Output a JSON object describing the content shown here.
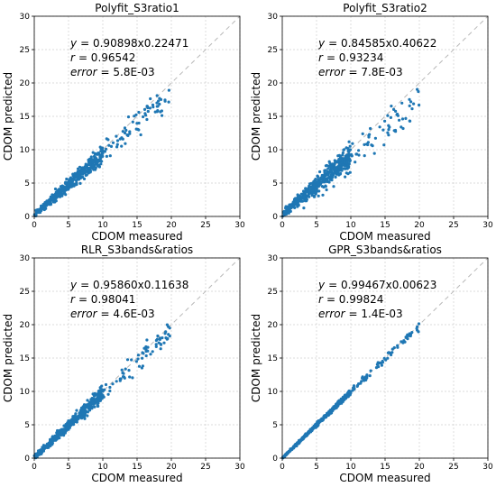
{
  "chart_data": [
    {
      "type": "scatter",
      "title": "Polyfit_S3ratio1",
      "xlabel": "CDOM measured",
      "ylabel": "CDOM predicted",
      "xlim": [
        0,
        30
      ],
      "ylim": [
        0,
        30
      ],
      "xticks": [
        "0",
        "5",
        "10",
        "15",
        "20",
        "25",
        "30"
      ],
      "yticks": [
        "0",
        "5",
        "10",
        "15",
        "20",
        "25",
        "30"
      ],
      "grid": true,
      "reference_line": "1:1 dashed",
      "annotations": {
        "equation_var": "y",
        "equation_eq": "= 0.90898x0.22471",
        "r_var": "r",
        "r_eq": "= 0.96542",
        "error_var": "error",
        "error_eq": "= 5.8E-03"
      },
      "fit": {
        "slope": 0.90898,
        "intercept": 0.22471,
        "spread": 0.9
      },
      "point_color": "#1f77b4"
    },
    {
      "type": "scatter",
      "title": "Polyfit_S3ratio2",
      "xlabel": "CDOM measured",
      "ylabel": "CDOM predicted",
      "xlim": [
        0,
        30
      ],
      "ylim": [
        0,
        30
      ],
      "xticks": [
        "0",
        "5",
        "10",
        "15",
        "20",
        "25",
        "30"
      ],
      "yticks": [
        "0",
        "5",
        "10",
        "15",
        "20",
        "25",
        "30"
      ],
      "grid": true,
      "reference_line": "1:1 dashed",
      "annotations": {
        "equation_var": "y",
        "equation_eq": "= 0.84585x0.40622",
        "r_var": "r",
        "r_eq": "= 0.93234",
        "error_var": "error",
        "error_eq": "= 7.8E-03"
      },
      "fit": {
        "slope": 0.84585,
        "intercept": 0.40622,
        "spread": 1.3
      },
      "point_color": "#1f77b4"
    },
    {
      "type": "scatter",
      "title": "RLR_S3bands&ratios",
      "xlabel": "CDOM measured",
      "ylabel": "CDOM predicted",
      "xlim": [
        0,
        30
      ],
      "ylim": [
        0,
        30
      ],
      "xticks": [
        "0",
        "5",
        "10",
        "15",
        "20",
        "25",
        "30"
      ],
      "yticks": [
        "0",
        "5",
        "10",
        "15",
        "20",
        "25",
        "30"
      ],
      "grid": true,
      "reference_line": "1:1 dashed",
      "annotations": {
        "equation_var": "y",
        "equation_eq": "= 0.95860x0.11638",
        "r_var": "r",
        "r_eq": "= 0.98041",
        "error_var": "error",
        "error_eq": "= 4.6E-03"
      },
      "fit": {
        "slope": 0.9586,
        "intercept": 0.11638,
        "spread": 0.7
      },
      "point_color": "#1f77b4"
    },
    {
      "type": "scatter",
      "title": "GPR_S3bands&ratios",
      "xlabel": "CDOM measured",
      "ylabel": "CDOM predicted",
      "xlim": [
        0,
        30
      ],
      "ylim": [
        0,
        30
      ],
      "xticks": [
        "0",
        "5",
        "10",
        "15",
        "20",
        "25",
        "30"
      ],
      "yticks": [
        "0",
        "5",
        "10",
        "15",
        "20",
        "25",
        "30"
      ],
      "grid": true,
      "reference_line": "1:1 dashed",
      "annotations": {
        "equation_var": "y",
        "equation_eq": "= 0.99467x0.00623",
        "r_var": "r",
        "r_eq": "= 0.99824",
        "error_var": "error",
        "error_eq": "= 1.4E-03"
      },
      "fit": {
        "slope": 0.99467,
        "intercept": 0.00623,
        "spread": 0.25
      },
      "point_color": "#1f77b4"
    }
  ]
}
